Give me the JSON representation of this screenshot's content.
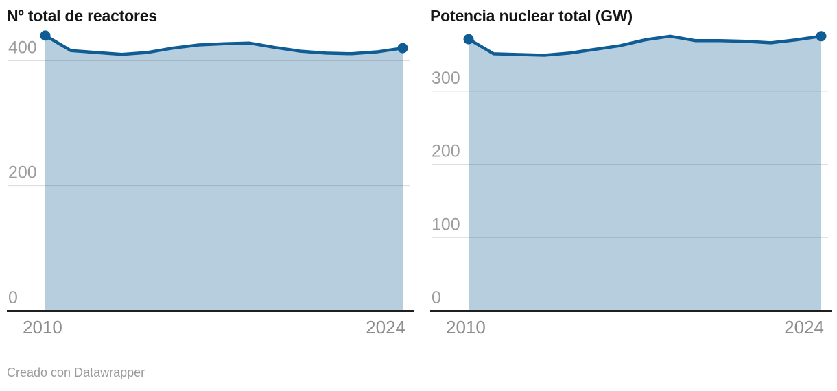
{
  "chart_data": [
    {
      "type": "area",
      "title": "Nº total de reactores",
      "x": [
        2010,
        2011,
        2012,
        2013,
        2014,
        2015,
        2016,
        2017,
        2018,
        2019,
        2020,
        2021,
        2022,
        2023,
        2024
      ],
      "values": [
        440,
        416,
        413,
        410,
        413,
        420,
        425,
        427,
        428,
        421,
        415,
        412,
        411,
        414,
        420
      ],
      "xlabel": "",
      "ylabel": "",
      "ylim": [
        0,
        453
      ],
      "y_ticks": [
        400,
        200,
        0
      ],
      "x_tick_labels": [
        "2010",
        "2024"
      ],
      "grid": true,
      "legend": "none",
      "endpoint_markers": true
    },
    {
      "type": "area",
      "title": "Potencia nuclear total (GW)",
      "x": [
        2010,
        2011,
        2012,
        2013,
        2014,
        2015,
        2016,
        2017,
        2018,
        2019,
        2020,
        2021,
        2022,
        2023,
        2024
      ],
      "values": [
        371,
        351,
        350,
        349,
        352,
        357,
        362,
        370,
        375,
        369,
        369,
        368,
        366,
        370,
        375
      ],
      "xlabel": "",
      "ylabel": "",
      "ylim": [
        0,
        387
      ],
      "y_ticks": [
        300,
        200,
        100,
        0
      ],
      "x_tick_labels": [
        "2010",
        "2024"
      ],
      "grid": true,
      "legend": "none",
      "endpoint_markers": true
    }
  ],
  "colors": {
    "line": "#0f5d94",
    "area_opacity": 0.3,
    "grid": "#d9d9d9",
    "axis": "#1f1f1f",
    "y_tick_label": "#9c9c9c",
    "x_tick_label": "#8d8d8d",
    "title": "#161616",
    "footer": "#9b9b9b",
    "background": "#ffffff"
  },
  "footer": {
    "attribution": "Creado con Datawrapper"
  }
}
